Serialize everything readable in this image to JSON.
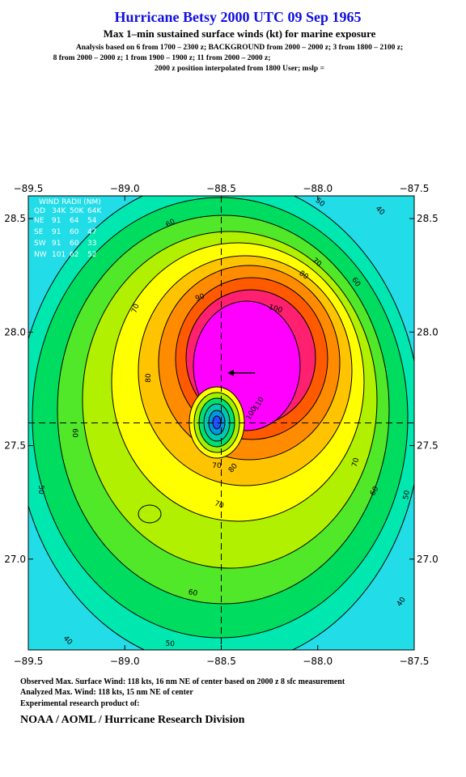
{
  "header": {
    "title": "Hurricane Betsy 2000 UTC 09 Sep 1965",
    "subtitle": "Max 1–min sustained surface winds (kt) for marine exposure",
    "analysis": [
      "Analysis based on  6 from 1700 – 2300 z;  BACKGROUND from 2000 – 2000 z;  3 from 1800 – 2100 z;",
      "8 from 2000 – 2000 z;  1 from 1900 – 1900 z;  11 from 2000 – 2000 z;",
      "2000 z position interpolated from 1800 User; mslp ="
    ]
  },
  "map": {
    "xlim": [
      -89.5,
      -87.5
    ],
    "ylim": [
      26.6,
      28.6
    ],
    "xticks": [
      {
        "value": -89.5,
        "label": "−89.5"
      },
      {
        "value": -89.0,
        "label": "−89.0"
      },
      {
        "value": -88.5,
        "label": "−88.5"
      },
      {
        "value": -88.0,
        "label": "−88.0"
      },
      {
        "value": -87.5,
        "label": "−87.5"
      }
    ],
    "yticks": [
      {
        "value": 27.0,
        "label": "27.0"
      },
      {
        "value": 27.5,
        "label": "27.5"
      },
      {
        "value": 28.0,
        "label": "28.0"
      },
      {
        "value": 28.5,
        "label": "28.5"
      }
    ],
    "center": {
      "lon": -88.5,
      "lat": 27.6
    },
    "max_wind_marker": {
      "lon": -88.46,
      "lat": 27.82
    },
    "contour_labels": [
      60,
      50,
      40,
      70,
      80,
      60,
      90,
      100,
      70,
      80,
      60,
      70,
      60,
      50,
      50,
      60,
      40,
      50,
      40,
      70,
      80,
      70,
      110,
      100
    ],
    "wind_radii": {
      "title": "WIND RADII (NM)",
      "header": [
        "QD",
        "34K",
        "50K",
        "64K"
      ],
      "rows": [
        [
          "NE",
          "91",
          "64",
          "54"
        ],
        [
          "SE",
          "91",
          "60",
          "47"
        ],
        [
          "SW",
          "91",
          "60",
          "33"
        ],
        [
          "NW",
          "101",
          "62",
          "52"
        ]
      ]
    }
  },
  "footer": [
    "Observed Max. Surface Wind: 118 kts, 16 nm NE of center based on 2000 z 8 sfc measurement",
    "Analyzed Max. Wind: 118 kts, 15 nm NE of center",
    "Experimental research product of:",
    "NOAA / AOML / Hurricane Research Division"
  ]
}
